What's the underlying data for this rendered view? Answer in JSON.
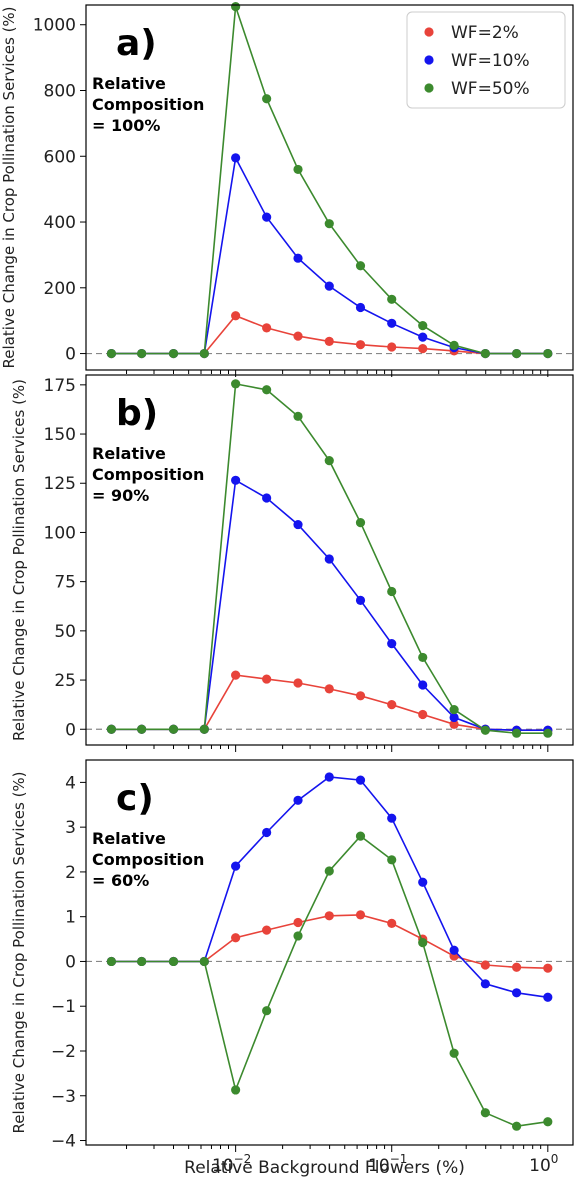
{
  "chart_data": [
    {
      "type": "line",
      "panel_label": "a)",
      "annotation": [
        "Relative",
        "Composition",
        "= 100%"
      ],
      "ylabel": "Relative Change in Crop Pollination Services (%)",
      "x": [
        0.0016,
        0.0025,
        0.004,
        0.0063,
        0.01,
        0.0158,
        0.0251,
        0.0398,
        0.0631,
        0.1,
        0.158,
        0.251,
        0.398,
        0.631,
        1.0
      ],
      "ylim": [
        -50,
        1060
      ],
      "yticks": [
        0,
        200,
        400,
        600,
        800,
        1000
      ],
      "series": [
        {
          "name": "WF=2%",
          "color": "#e8433a",
          "values": [
            0,
            0,
            0,
            0,
            115,
            78,
            53,
            37,
            27,
            20,
            15,
            8,
            0,
            0,
            0
          ]
        },
        {
          "name": "WF=10%",
          "color": "#1414ee",
          "values": [
            0,
            0,
            0,
            0,
            595,
            415,
            290,
            205,
            140,
            92,
            50,
            18,
            0,
            0,
            0
          ]
        },
        {
          "name": "WF=50%",
          "color": "#3c8a2e",
          "values": [
            0,
            0,
            0,
            0,
            1055,
            775,
            560,
            395,
            267,
            165,
            85,
            25,
            0,
            0,
            0
          ]
        }
      ],
      "legend": {
        "entries": [
          "WF=2%",
          "WF=10%",
          "WF=50%"
        ],
        "placement": "top-right"
      },
      "grid": false
    },
    {
      "type": "line",
      "panel_label": "b)",
      "annotation": [
        "Relative",
        "Composition",
        "= 90%"
      ],
      "ylabel": "Relative Change in Crop Pollination Services (%)",
      "x": [
        0.0016,
        0.0025,
        0.004,
        0.0063,
        0.01,
        0.0158,
        0.0251,
        0.0398,
        0.0631,
        0.1,
        0.158,
        0.251,
        0.398,
        0.631,
        1.0
      ],
      "ylim": [
        -8,
        180
      ],
      "yticks": [
        0,
        25,
        50,
        75,
        100,
        125,
        150,
        175
      ],
      "series": [
        {
          "name": "WF=2%",
          "color": "#e8433a",
          "values": [
            0,
            0,
            0,
            0,
            27.5,
            25.5,
            23.5,
            20.5,
            17,
            12.5,
            7.5,
            2.5,
            0,
            -0.5,
            -0.5
          ]
        },
        {
          "name": "WF=10%",
          "color": "#1414ee",
          "values": [
            0,
            0,
            0,
            0,
            126.5,
            117.5,
            104,
            86.5,
            65.5,
            43.5,
            22.5,
            6,
            0,
            -0.5,
            -0.5
          ]
        },
        {
          "name": "WF=50%",
          "color": "#3c8a2e",
          "values": [
            0,
            0,
            0,
            0,
            175.5,
            172.5,
            159,
            136.5,
            105,
            70,
            36.5,
            10,
            -0.5,
            -2,
            -2
          ]
        }
      ],
      "grid": false
    },
    {
      "type": "line",
      "panel_label": "c)",
      "annotation": [
        "Relative",
        "Composition",
        "= 60%"
      ],
      "ylabel": "Relative Change in Crop Pollination Services (%)",
      "xlabel": "Relative Background Flowers (%)",
      "x": [
        0.0016,
        0.0025,
        0.004,
        0.0063,
        0.01,
        0.0158,
        0.0251,
        0.0398,
        0.0631,
        0.1,
        0.158,
        0.251,
        0.398,
        0.631,
        1.0
      ],
      "ylim": [
        -4.1,
        4.5
      ],
      "yticks": [
        -4,
        -3,
        -2,
        -1,
        0,
        1,
        2,
        3,
        4
      ],
      "xticks": [
        {
          "value": 0.01,
          "base": "10",
          "exp": "−2"
        },
        {
          "value": 0.1,
          "base": "10",
          "exp": "−1"
        },
        {
          "value": 1.0,
          "base": "10",
          "exp": "0"
        }
      ],
      "series": [
        {
          "name": "WF=2%",
          "color": "#e8433a",
          "values": [
            0,
            0,
            0,
            0,
            0.53,
            0.7,
            0.87,
            1.02,
            1.04,
            0.85,
            0.5,
            0.12,
            -0.08,
            -0.13,
            -0.15
          ]
        },
        {
          "name": "WF=10%",
          "color": "#1414ee",
          "values": [
            0,
            0,
            0,
            0,
            2.13,
            2.88,
            3.6,
            4.12,
            4.05,
            3.2,
            1.77,
            0.25,
            -0.5,
            -0.7,
            -0.8
          ]
        },
        {
          "name": "WF=50%",
          "color": "#3c8a2e",
          "values": [
            0,
            0,
            0,
            0,
            -2.87,
            -1.1,
            0.57,
            2.02,
            2.8,
            2.27,
            0.42,
            -2.05,
            -3.38,
            -3.68,
            -3.58
          ]
        }
      ],
      "grid": false
    }
  ]
}
